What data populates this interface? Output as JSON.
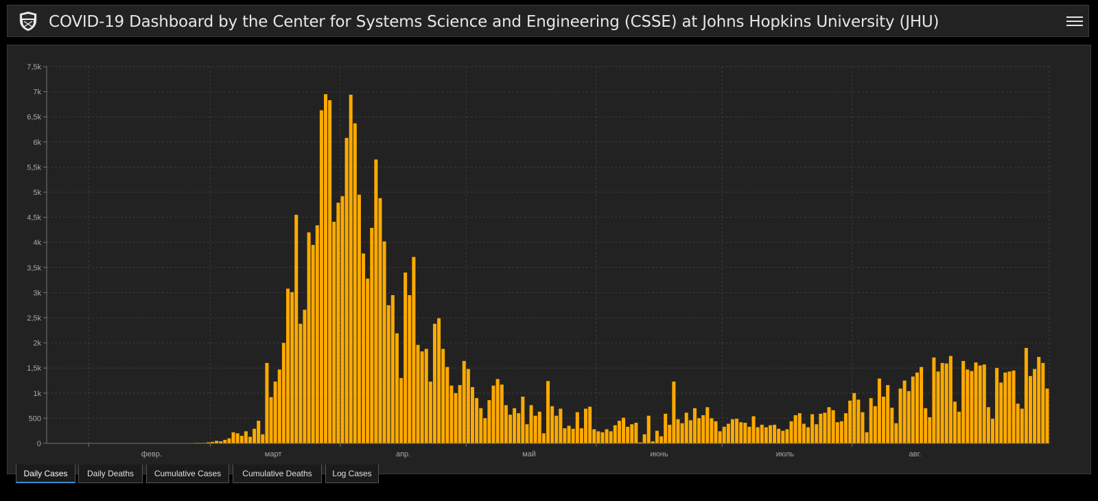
{
  "header": {
    "title": "COVID-19 Dashboard by the Center for Systems Science and Engineering (CSSE) at Johns Hopkins University (JHU)",
    "logo_icon": "jhu-shield-icon",
    "menu_icon": "hamburger-menu-icon"
  },
  "colors": {
    "background": "#000000",
    "panel": "#222222",
    "bar": "#FFAA00",
    "grid": "#3c3c3c",
    "tab_active_underline": "#3b8fd6"
  },
  "tabs": [
    {
      "label": "Daily Cases",
      "active": true
    },
    {
      "label": "Daily Deaths",
      "active": false
    },
    {
      "label": "Cumulative Cases",
      "active": false
    },
    {
      "label": "Cumulative Deaths",
      "active": false
    },
    {
      "label": "Log Cases",
      "active": false
    }
  ],
  "chart_data": {
    "type": "bar",
    "title": "",
    "xlabel": "",
    "ylabel": "",
    "ylim": [
      0,
      7500
    ],
    "y_ticks": [
      0,
      500,
      1000,
      1500,
      2000,
      2500,
      3000,
      3500,
      4000,
      4500,
      5000,
      5500,
      6000,
      6500,
      7000,
      7500
    ],
    "y_tick_labels": [
      "0",
      "500",
      "1k",
      "1,5k",
      "2k",
      "2,5k",
      "3k",
      "3,5k",
      "4k",
      "4,5k",
      "5k",
      "5,5k",
      "6k",
      "6,5k",
      "7k",
      "7,5k"
    ],
    "x_start": "2020-01-22",
    "x_tick_labels": [
      {
        "label": "февр.",
        "date": "2020-02-01"
      },
      {
        "label": "март",
        "date": "2020-03-01"
      },
      {
        "label": "апр.",
        "date": "2020-04-01"
      },
      {
        "label": "май",
        "date": "2020-05-01"
      },
      {
        "label": "июнь",
        "date": "2020-06-01"
      },
      {
        "label": "июль",
        "date": "2020-07-01"
      },
      {
        "label": "авг.",
        "date": "2020-08-01"
      }
    ],
    "grid": true,
    "legend": "none",
    "series": [
      {
        "values": [
          0,
          0,
          0,
          0,
          0,
          0,
          0,
          0,
          0,
          0,
          0,
          0,
          0,
          0,
          0,
          0,
          0,
          0,
          0,
          0,
          0,
          0,
          0,
          0,
          0,
          0,
          0,
          0,
          0,
          0,
          0,
          0,
          0,
          0,
          0,
          10,
          10,
          10,
          20,
          30,
          50,
          40,
          70,
          100,
          220,
          200,
          150,
          240,
          130,
          290,
          450,
          180,
          1600,
          920,
          1230,
          1470,
          2000,
          3080,
          3010,
          4550,
          2380,
          2660,
          4200,
          3950,
          4340,
          6630,
          6950,
          6830,
          4410,
          4790,
          4920,
          6080,
          6940,
          6370,
          4950,
          3780,
          3280,
          4290,
          5650,
          4880,
          4020,
          2750,
          2950,
          2190,
          1300,
          3400,
          2950,
          3710,
          1960,
          1830,
          1880,
          1230,
          2380,
          2490,
          1880,
          1520,
          1150,
          1000,
          1160,
          1640,
          1480,
          1120,
          900,
          700,
          500,
          860,
          1150,
          1280,
          1170,
          760,
          570,
          700,
          600,
          930,
          380,
          760,
          550,
          630,
          200,
          1240,
          740,
          550,
          690,
          300,
          350,
          290,
          620,
          300,
          690,
          730,
          280,
          240,
          220,
          280,
          240,
          360,
          450,
          510,
          330,
          380,
          410,
          20,
          180,
          550,
          40,
          250,
          140,
          590,
          370,
          1230,
          480,
          400,
          610,
          460,
          700,
          500,
          560,
          720,
          500,
          440,
          240,
          330,
          390,
          480,
          490,
          420,
          410,
          330,
          540,
          320,
          370,
          320,
          360,
          370,
          290,
          250,
          280,
          440,
          560,
          600,
          390,
          320,
          580,
          380,
          590,
          610,
          720,
          660,
          420,
          440,
          600,
          850,
          1000,
          870,
          620,
          220,
          900,
          740,
          1290,
          930,
          1160,
          710,
          400,
          1090,
          1250,
          1040,
          1330,
          1410,
          1520,
          700,
          520,
          1710,
          1430,
          1600,
          1590,
          1740,
          830,
          630,
          1640,
          1470,
          1440,
          1610,
          1550,
          1570,
          720,
          490,
          1500,
          1210,
          1410,
          1430,
          1450,
          790,
          690,
          1900,
          1340,
          1480,
          1720,
          1600,
          1090
        ]
      }
    ]
  }
}
